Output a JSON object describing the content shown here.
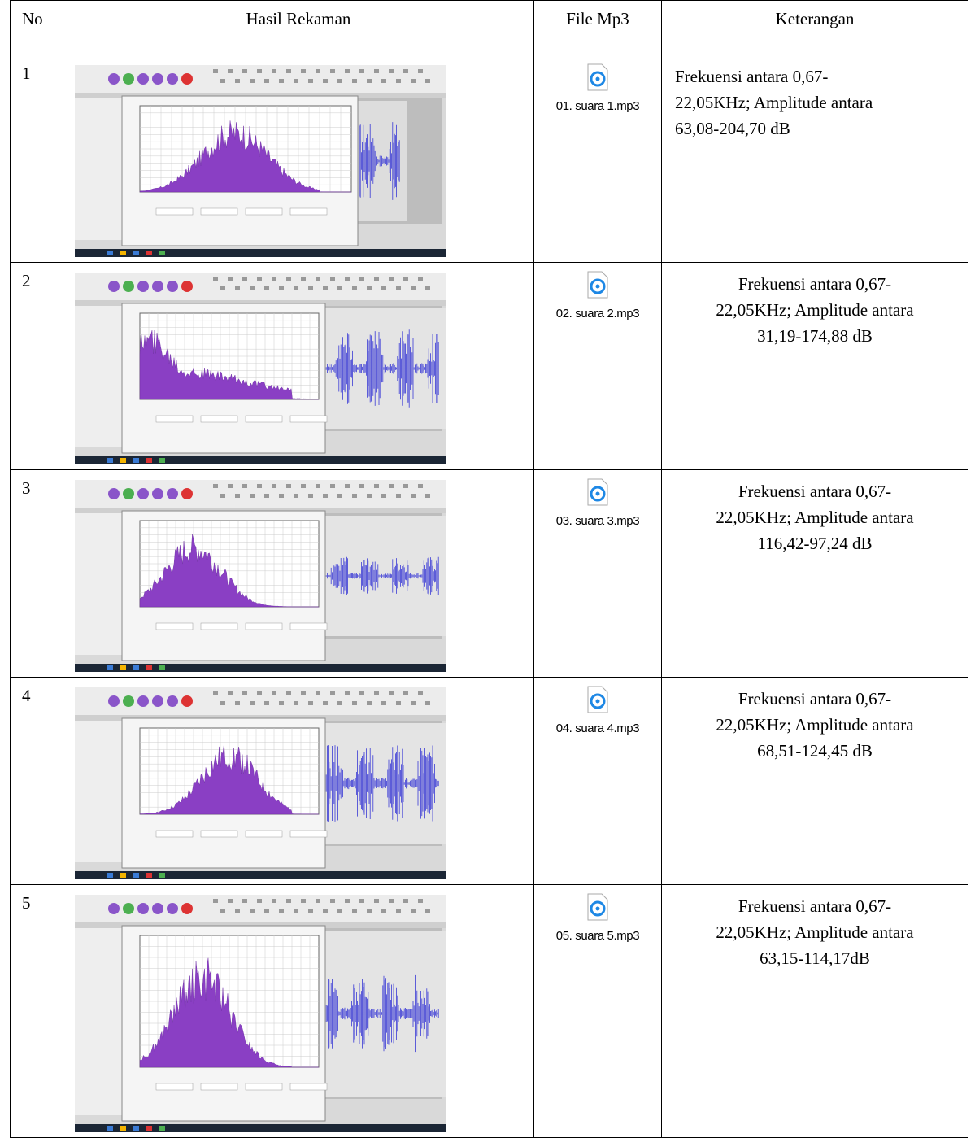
{
  "table": {
    "header": [
      "No",
      "Hasil Rekaman",
      "File Mp3",
      "Keterangan"
    ],
    "rows": [
      {
        "no": "1",
        "file": "01. suara 1.mp3",
        "keterangan": [
          "Frekuensi antara  0,67-",
          "22,05KHz; Amplitude antara",
          "63,08-204,70 dB"
        ]
      },
      {
        "no": "2",
        "file": "02. suara 2.mp3",
        "keterangan": [
          "Frekuensi antara  0,67-",
          "22,05KHz; Amplitude antara",
          "31,19-174,88 dB"
        ]
      },
      {
        "no": "3",
        "file": "03. suara 3.mp3",
        "keterangan": [
          "Frekuensi antara  0,67-",
          "22,05KHz; Amplitude antara",
          "116,42-97,24 dB"
        ]
      },
      {
        "no": "4",
        "file": "04. suara 4.mp3",
        "keterangan": [
          "Frekuensi antara  0,67-",
          "22,05KHz; Amplitude antara",
          "68,51-124,45 dB"
        ]
      },
      {
        "no": "5",
        "file": "05. suara 5.mp3",
        "keterangan": [
          "Frekuensi antara  0,67-",
          "22,05KHz; Amplitude antara",
          "63,15-114,17dB"
        ]
      }
    ]
  }
}
